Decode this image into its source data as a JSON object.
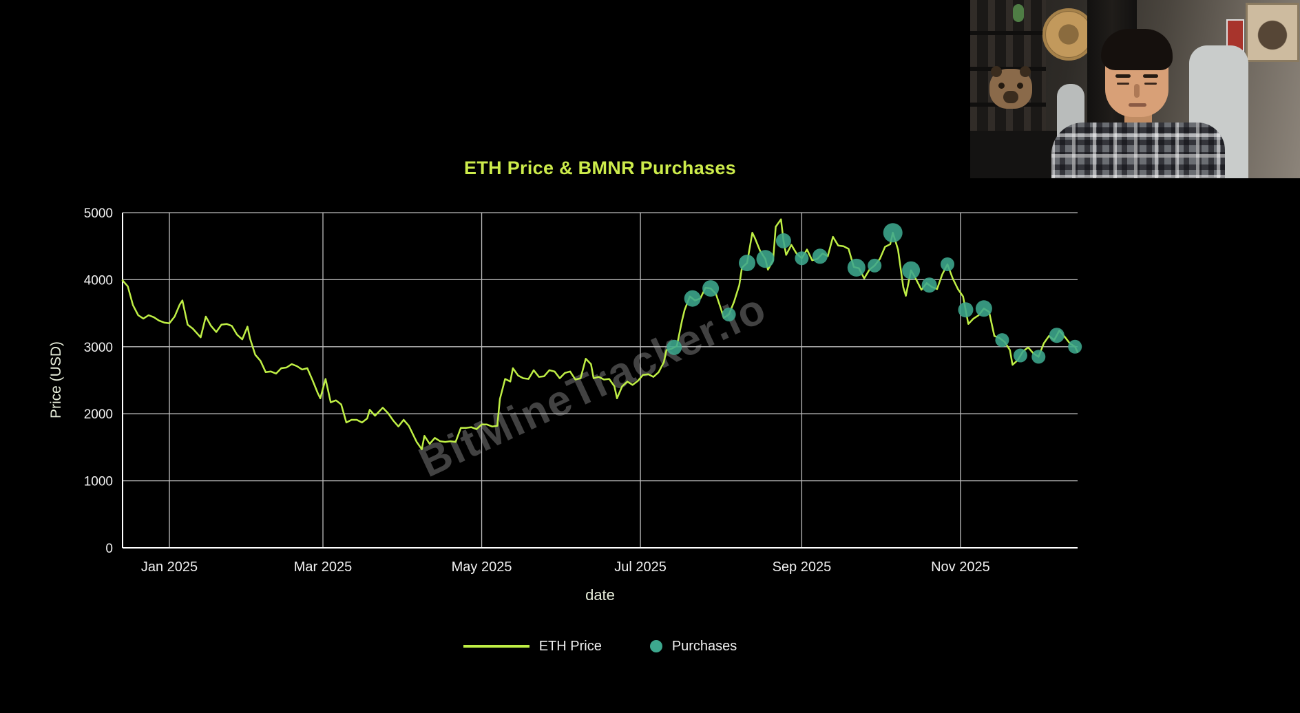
{
  "page": {
    "background": "#000000"
  },
  "chart": {
    "title": "ETH Price & BMNR Purchases",
    "x_axis_label": "date",
    "y_axis_label": "Price (USD)",
    "watermark": "BitMineTracker.io",
    "legend": {
      "items": [
        {
          "label": "ETH Price",
          "type": "line"
        },
        {
          "label": "Purchases",
          "type": "marker"
        }
      ]
    }
  },
  "chart_data": {
    "type": "line",
    "title": "ETH Price & BMNR Purchases",
    "xlabel": "date",
    "ylabel": "Price (USD)",
    "ylim": [
      0,
      5000
    ],
    "yticks": [
      0,
      1000,
      2000,
      3000,
      4000,
      5000
    ],
    "xlim": [
      "2024-12-14",
      "2025-12-16"
    ],
    "xticks": [
      {
        "date": "2025-01-01",
        "label": "Jan 2025"
      },
      {
        "date": "2025-03-01",
        "label": "Mar 2025"
      },
      {
        "date": "2025-05-01",
        "label": "May 2025"
      },
      {
        "date": "2025-07-01",
        "label": "Jul 2025"
      },
      {
        "date": "2025-09-01",
        "label": "Sep 2025"
      },
      {
        "date": "2025-11-01",
        "label": "Nov 2025"
      }
    ],
    "grid": true,
    "legend_position": "bottom-center",
    "colors": {
      "background": "#000000",
      "line": "#bfef45",
      "marker": "#3da88e",
      "grid": "#bdbdbd",
      "axis": "#ffffff",
      "tick": "#f0f0f0",
      "axis_title": "#e8eedb",
      "title": "#cdec4b",
      "legend_text": "#f0f0f0"
    },
    "series": [
      {
        "name": "ETH Price",
        "type": "line",
        "points": [
          [
            "2024-12-14",
            3990
          ],
          [
            "2024-12-16",
            3900
          ],
          [
            "2024-12-18",
            3620
          ],
          [
            "2024-12-20",
            3470
          ],
          [
            "2024-12-22",
            3420
          ],
          [
            "2024-12-24",
            3470
          ],
          [
            "2024-12-26",
            3440
          ],
          [
            "2024-12-28",
            3390
          ],
          [
            "2024-12-30",
            3360
          ],
          [
            "2025-01-01",
            3350
          ],
          [
            "2025-01-03",
            3450
          ],
          [
            "2025-01-05",
            3630
          ],
          [
            "2025-01-06",
            3690
          ],
          [
            "2025-01-08",
            3330
          ],
          [
            "2025-01-10",
            3270
          ],
          [
            "2025-01-13",
            3140
          ],
          [
            "2025-01-15",
            3450
          ],
          [
            "2025-01-17",
            3310
          ],
          [
            "2025-01-19",
            3220
          ],
          [
            "2025-01-21",
            3330
          ],
          [
            "2025-01-23",
            3340
          ],
          [
            "2025-01-25",
            3310
          ],
          [
            "2025-01-27",
            3180
          ],
          [
            "2025-01-29",
            3110
          ],
          [
            "2025-01-31",
            3300
          ],
          [
            "2025-02-01",
            3120
          ],
          [
            "2025-02-03",
            2880
          ],
          [
            "2025-02-05",
            2790
          ],
          [
            "2025-02-07",
            2620
          ],
          [
            "2025-02-09",
            2630
          ],
          [
            "2025-02-11",
            2600
          ],
          [
            "2025-02-13",
            2680
          ],
          [
            "2025-02-15",
            2690
          ],
          [
            "2025-02-17",
            2740
          ],
          [
            "2025-02-19",
            2710
          ],
          [
            "2025-02-21",
            2660
          ],
          [
            "2025-02-23",
            2680
          ],
          [
            "2025-02-25",
            2500
          ],
          [
            "2025-02-27",
            2310
          ],
          [
            "2025-02-28",
            2230
          ],
          [
            "2025-03-02",
            2520
          ],
          [
            "2025-03-04",
            2170
          ],
          [
            "2025-03-06",
            2200
          ],
          [
            "2025-03-08",
            2140
          ],
          [
            "2025-03-10",
            1870
          ],
          [
            "2025-03-12",
            1910
          ],
          [
            "2025-03-14",
            1910
          ],
          [
            "2025-03-16",
            1870
          ],
          [
            "2025-03-18",
            1930
          ],
          [
            "2025-03-19",
            2060
          ],
          [
            "2025-03-21",
            1970
          ],
          [
            "2025-03-24",
            2090
          ],
          [
            "2025-03-26",
            2010
          ],
          [
            "2025-03-28",
            1900
          ],
          [
            "2025-03-30",
            1810
          ],
          [
            "2025-04-01",
            1910
          ],
          [
            "2025-04-03",
            1820
          ],
          [
            "2025-04-06",
            1580
          ],
          [
            "2025-04-08",
            1470
          ],
          [
            "2025-04-09",
            1670
          ],
          [
            "2025-04-11",
            1550
          ],
          [
            "2025-04-13",
            1640
          ],
          [
            "2025-04-15",
            1590
          ],
          [
            "2025-04-17",
            1580
          ],
          [
            "2025-04-19",
            1590
          ],
          [
            "2025-04-21",
            1580
          ],
          [
            "2025-04-23",
            1790
          ],
          [
            "2025-04-25",
            1790
          ],
          [
            "2025-04-27",
            1800
          ],
          [
            "2025-04-29",
            1770
          ],
          [
            "2025-05-01",
            1840
          ],
          [
            "2025-05-03",
            1840
          ],
          [
            "2025-05-05",
            1810
          ],
          [
            "2025-05-07",
            1820
          ],
          [
            "2025-05-08",
            2220
          ],
          [
            "2025-05-10",
            2520
          ],
          [
            "2025-05-12",
            2480
          ],
          [
            "2025-05-13",
            2680
          ],
          [
            "2025-05-15",
            2570
          ],
          [
            "2025-05-17",
            2530
          ],
          [
            "2025-05-19",
            2520
          ],
          [
            "2025-05-21",
            2650
          ],
          [
            "2025-05-23",
            2550
          ],
          [
            "2025-05-25",
            2560
          ],
          [
            "2025-05-27",
            2650
          ],
          [
            "2025-05-29",
            2630
          ],
          [
            "2025-05-31",
            2530
          ],
          [
            "2025-06-02",
            2610
          ],
          [
            "2025-06-04",
            2630
          ],
          [
            "2025-06-06",
            2510
          ],
          [
            "2025-06-08",
            2530
          ],
          [
            "2025-06-10",
            2820
          ],
          [
            "2025-06-12",
            2740
          ],
          [
            "2025-06-13",
            2530
          ],
          [
            "2025-06-15",
            2550
          ],
          [
            "2025-06-17",
            2510
          ],
          [
            "2025-06-19",
            2520
          ],
          [
            "2025-06-21",
            2410
          ],
          [
            "2025-06-22",
            2230
          ],
          [
            "2025-06-24",
            2410
          ],
          [
            "2025-06-26",
            2480
          ],
          [
            "2025-06-28",
            2430
          ],
          [
            "2025-06-30",
            2490
          ],
          [
            "2025-07-02",
            2580
          ],
          [
            "2025-07-04",
            2590
          ],
          [
            "2025-07-06",
            2550
          ],
          [
            "2025-07-08",
            2620
          ],
          [
            "2025-07-10",
            2770
          ],
          [
            "2025-07-11",
            2950
          ],
          [
            "2025-07-13",
            2970
          ],
          [
            "2025-07-15",
            3010
          ],
          [
            "2025-07-17",
            3390
          ],
          [
            "2025-07-18",
            3550
          ],
          [
            "2025-07-20",
            3750
          ],
          [
            "2025-07-22",
            3690
          ],
          [
            "2025-07-24",
            3720
          ],
          [
            "2025-07-26",
            3880
          ],
          [
            "2025-07-28",
            3870
          ],
          [
            "2025-07-30",
            3790
          ],
          [
            "2025-08-01",
            3560
          ],
          [
            "2025-08-02",
            3430
          ],
          [
            "2025-08-04",
            3480
          ],
          [
            "2025-08-06",
            3670
          ],
          [
            "2025-08-08",
            3920
          ],
          [
            "2025-08-09",
            4180
          ],
          [
            "2025-08-11",
            4250
          ],
          [
            "2025-08-13",
            4700
          ],
          [
            "2025-08-14",
            4620
          ],
          [
            "2025-08-16",
            4430
          ],
          [
            "2025-08-18",
            4310
          ],
          [
            "2025-08-19",
            4150
          ],
          [
            "2025-08-21",
            4290
          ],
          [
            "2025-08-22",
            4790
          ],
          [
            "2025-08-24",
            4900
          ],
          [
            "2025-08-25",
            4580
          ],
          [
            "2025-08-26",
            4370
          ],
          [
            "2025-08-28",
            4520
          ],
          [
            "2025-08-30",
            4390
          ],
          [
            "2025-09-01",
            4320
          ],
          [
            "2025-09-03",
            4450
          ],
          [
            "2025-09-05",
            4290
          ],
          [
            "2025-09-07",
            4310
          ],
          [
            "2025-09-09",
            4390
          ],
          [
            "2025-09-11",
            4350
          ],
          [
            "2025-09-13",
            4640
          ],
          [
            "2025-09-15",
            4510
          ],
          [
            "2025-09-17",
            4500
          ],
          [
            "2025-09-19",
            4460
          ],
          [
            "2025-09-21",
            4190
          ],
          [
            "2025-09-23",
            4170
          ],
          [
            "2025-09-25",
            4020
          ],
          [
            "2025-09-27",
            4150
          ],
          [
            "2025-09-29",
            4210
          ],
          [
            "2025-10-01",
            4310
          ],
          [
            "2025-10-03",
            4490
          ],
          [
            "2025-10-05",
            4530
          ],
          [
            "2025-10-06",
            4700
          ],
          [
            "2025-10-08",
            4450
          ],
          [
            "2025-10-10",
            3890
          ],
          [
            "2025-10-11",
            3760
          ],
          [
            "2025-10-13",
            4140
          ],
          [
            "2025-10-15",
            4000
          ],
          [
            "2025-10-17",
            3850
          ],
          [
            "2025-10-19",
            3950
          ],
          [
            "2025-10-21",
            3890
          ],
          [
            "2025-10-23",
            3860
          ],
          [
            "2025-10-25",
            4080
          ],
          [
            "2025-10-27",
            4230
          ],
          [
            "2025-10-29",
            4020
          ],
          [
            "2025-10-31",
            3860
          ],
          [
            "2025-11-02",
            3750
          ],
          [
            "2025-11-04",
            3340
          ],
          [
            "2025-11-06",
            3420
          ],
          [
            "2025-11-08",
            3470
          ],
          [
            "2025-11-10",
            3570
          ],
          [
            "2025-11-12",
            3520
          ],
          [
            "2025-11-14",
            3160
          ],
          [
            "2025-11-16",
            3130
          ],
          [
            "2025-11-18",
            3070
          ],
          [
            "2025-11-20",
            2950
          ],
          [
            "2025-11-21",
            2730
          ],
          [
            "2025-11-23",
            2800
          ],
          [
            "2025-11-25",
            2930
          ],
          [
            "2025-11-27",
            2990
          ],
          [
            "2025-11-29",
            2900
          ],
          [
            "2025-12-01",
            2850
          ],
          [
            "2025-12-03",
            3050
          ],
          [
            "2025-12-05",
            3160
          ],
          [
            "2025-12-07",
            3100
          ],
          [
            "2025-12-09",
            3240
          ],
          [
            "2025-12-11",
            3150
          ],
          [
            "2025-12-13",
            3050
          ],
          [
            "2025-12-15",
            3000
          ],
          [
            "2025-12-16",
            2920
          ]
        ]
      }
    ],
    "purchases": {
      "name": "Purchases",
      "type": "scatter",
      "points": [
        {
          "date": "2025-07-14",
          "price": 2990,
          "r": 11
        },
        {
          "date": "2025-07-21",
          "price": 3720,
          "r": 12
        },
        {
          "date": "2025-07-28",
          "price": 3870,
          "r": 12
        },
        {
          "date": "2025-08-04",
          "price": 3480,
          "r": 10
        },
        {
          "date": "2025-08-11",
          "price": 4250,
          "r": 12
        },
        {
          "date": "2025-08-18",
          "price": 4310,
          "r": 13
        },
        {
          "date": "2025-08-25",
          "price": 4580,
          "r": 11
        },
        {
          "date": "2025-09-01",
          "price": 4320,
          "r": 10
        },
        {
          "date": "2025-09-08",
          "price": 4350,
          "r": 11
        },
        {
          "date": "2025-09-22",
          "price": 4180,
          "r": 13
        },
        {
          "date": "2025-09-29",
          "price": 4210,
          "r": 10
        },
        {
          "date": "2025-10-06",
          "price": 4700,
          "r": 14
        },
        {
          "date": "2025-10-13",
          "price": 4140,
          "r": 13
        },
        {
          "date": "2025-10-20",
          "price": 3920,
          "r": 11
        },
        {
          "date": "2025-10-27",
          "price": 4230,
          "r": 10
        },
        {
          "date": "2025-11-03",
          "price": 3550,
          "r": 11
        },
        {
          "date": "2025-11-10",
          "price": 3570,
          "r": 12
        },
        {
          "date": "2025-11-17",
          "price": 3100,
          "r": 10
        },
        {
          "date": "2025-11-24",
          "price": 2870,
          "r": 10
        },
        {
          "date": "2025-12-01",
          "price": 2850,
          "r": 10
        },
        {
          "date": "2025-12-08",
          "price": 3170,
          "r": 11
        },
        {
          "date": "2025-12-15",
          "price": 3000,
          "r": 10
        }
      ]
    }
  }
}
